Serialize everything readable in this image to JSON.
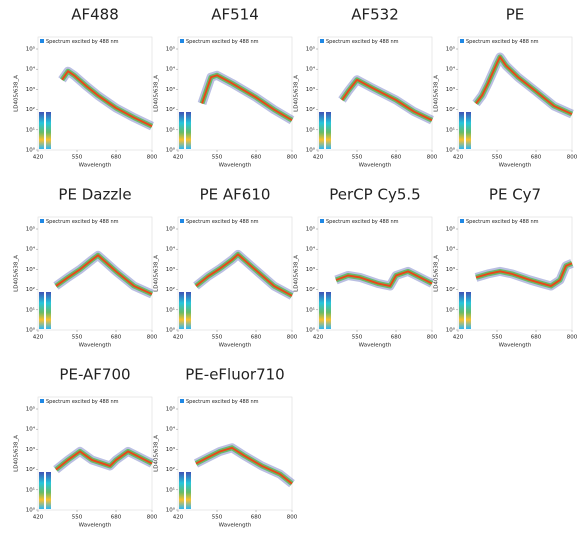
{
  "chart_data": [
    {
      "type": "line",
      "title": "AF488",
      "legend": "Spectrum excited by 488 nm",
      "xlabel": "Wavelength",
      "ylabel": "LD405/638_A",
      "log_y": true,
      "xlim": [
        420,
        800
      ],
      "ylim": [
        1,
        100000
      ],
      "xticks": [
        420,
        550,
        680,
        800
      ],
      "yticks": [
        {
          "value": 1,
          "label": "10⁰"
        },
        {
          "value": 10,
          "label": "10¹"
        },
        {
          "value": 100,
          "label": "10²"
        },
        {
          "value": 1000,
          "label": "10³"
        },
        {
          "value": 10000,
          "label": "10⁴"
        },
        {
          "value": 100000,
          "label": "10⁵"
        }
      ],
      "color": "#e64a19",
      "x": [
        500,
        520,
        540,
        580,
        620,
        680,
        740,
        800
      ],
      "values": [
        3000,
        8000,
        5000,
        1500,
        500,
        120,
        40,
        15
      ]
    },
    {
      "type": "line",
      "title": "AF514",
      "legend": "Spectrum excited by 488 nm",
      "xlabel": "Wavelength",
      "ylabel": "LD405/638_A",
      "log_y": true,
      "xlim": [
        420,
        800
      ],
      "ylim": [
        1,
        100000
      ],
      "xticks": [
        420,
        550,
        680,
        800
      ],
      "yticks": [
        {
          "value": 1,
          "label": "10⁰"
        },
        {
          "value": 10,
          "label": "10¹"
        },
        {
          "value": 100,
          "label": "10²"
        },
        {
          "value": 1000,
          "label": "10³"
        },
        {
          "value": 10000,
          "label": "10⁴"
        },
        {
          "value": 100000,
          "label": "10⁵"
        }
      ],
      "color": "#e64a19",
      "x": [
        500,
        530,
        550,
        600,
        680,
        740,
        800
      ],
      "values": [
        200,
        4000,
        5000,
        2000,
        400,
        100,
        30
      ]
    },
    {
      "type": "line",
      "title": "AF532",
      "legend": "Spectrum excited by 488 nm",
      "xlabel": "Wavelength",
      "ylabel": "LD405/638_A",
      "log_y": true,
      "xlim": [
        420,
        800
      ],
      "ylim": [
        1,
        100000
      ],
      "xticks": [
        420,
        550,
        680,
        800
      ],
      "yticks": [
        {
          "value": 1,
          "label": "10⁰"
        },
        {
          "value": 10,
          "label": "10¹"
        },
        {
          "value": 100,
          "label": "10²"
        },
        {
          "value": 1000,
          "label": "10³"
        },
        {
          "value": 10000,
          "label": "10⁴"
        },
        {
          "value": 100000,
          "label": "10⁵"
        }
      ],
      "color": "#e64a19",
      "x": [
        500,
        520,
        550,
        600,
        680,
        740,
        800
      ],
      "values": [
        300,
        800,
        3000,
        1200,
        300,
        80,
        30
      ]
    },
    {
      "type": "line",
      "title": "PE",
      "legend": "Spectrum excited by 488 nm",
      "xlabel": "Wavelength",
      "ylabel": "LD405/638_A",
      "log_y": true,
      "xlim": [
        420,
        800
      ],
      "ylim": [
        1,
        100000
      ],
      "xticks": [
        420,
        550,
        680,
        800
      ],
      "yticks": [
        {
          "value": 1,
          "label": "10⁰"
        },
        {
          "value": 10,
          "label": "10¹"
        },
        {
          "value": 100,
          "label": "10²"
        },
        {
          "value": 1000,
          "label": "10³"
        },
        {
          "value": 10000,
          "label": "10⁴"
        },
        {
          "value": 100000,
          "label": "10⁵"
        }
      ],
      "color": "#e64a19",
      "x": [
        480,
        500,
        520,
        550,
        560,
        580,
        620,
        680,
        740,
        800
      ],
      "values": [
        200,
        500,
        2000,
        20000,
        40000,
        15000,
        4000,
        800,
        150,
        60
      ]
    },
    {
      "type": "line",
      "title": "PE Dazzle",
      "legend": "Spectrum excited by 488 nm",
      "xlabel": "Wavelength",
      "ylabel": "LD405/638_A",
      "log_y": true,
      "xlim": [
        420,
        800
      ],
      "ylim": [
        1,
        100000
      ],
      "xticks": [
        420,
        550,
        680,
        800
      ],
      "yticks": [
        {
          "value": 1,
          "label": "10⁰"
        },
        {
          "value": 10,
          "label": "10¹"
        },
        {
          "value": 100,
          "label": "10²"
        },
        {
          "value": 1000,
          "label": "10³"
        },
        {
          "value": 10000,
          "label": "10⁴"
        },
        {
          "value": 100000,
          "label": "10⁵"
        }
      ],
      "color": "#e64a19",
      "x": [
        480,
        520,
        560,
        600,
        620,
        680,
        740,
        800
      ],
      "values": [
        150,
        400,
        1000,
        3000,
        5000,
        800,
        150,
        60
      ]
    },
    {
      "type": "line",
      "title": "PE AF610",
      "legend": "Spectrum excited by 488 nm",
      "xlabel": "Wavelength",
      "ylabel": "LD405/638_A",
      "log_y": true,
      "xlim": [
        420,
        800
      ],
      "ylim": [
        1,
        100000
      ],
      "xticks": [
        420,
        550,
        680,
        800
      ],
      "yticks": [
        {
          "value": 1,
          "label": "10⁰"
        },
        {
          "value": 10,
          "label": "10¹"
        },
        {
          "value": 100,
          "label": "10²"
        },
        {
          "value": 1000,
          "label": "10³"
        },
        {
          "value": 10000,
          "label": "10⁴"
        },
        {
          "value": 100000,
          "label": "10⁵"
        }
      ],
      "color": "#e64a19",
      "x": [
        480,
        520,
        560,
        600,
        620,
        680,
        740,
        800
      ],
      "values": [
        150,
        450,
        1100,
        3000,
        5500,
        900,
        150,
        50
      ]
    },
    {
      "type": "line",
      "title": "PerCP Cy5.5",
      "legend": "Spectrum excited by 488 nm",
      "xlabel": "Wavelength",
      "ylabel": "LD405/638_A",
      "log_y": true,
      "xlim": [
        420,
        800
      ],
      "ylim": [
        1,
        100000
      ],
      "xticks": [
        420,
        550,
        680,
        800
      ],
      "yticks": [
        {
          "value": 1,
          "label": "10⁰"
        },
        {
          "value": 10,
          "label": "10¹"
        },
        {
          "value": 100,
          "label": "10²"
        },
        {
          "value": 1000,
          "label": "10³"
        },
        {
          "value": 10000,
          "label": "10⁴"
        },
        {
          "value": 100000,
          "label": "10⁵"
        }
      ],
      "color": "#e64a19",
      "x": [
        480,
        520,
        560,
        620,
        660,
        680,
        720,
        760,
        800
      ],
      "values": [
        300,
        500,
        400,
        200,
        150,
        500,
        800,
        400,
        200
      ]
    },
    {
      "type": "line",
      "title": "PE Cy7",
      "legend": "Spectrum excited by 488 nm",
      "xlabel": "Wavelength",
      "ylabel": "LD405/638_A",
      "log_y": true,
      "xlim": [
        420,
        800
      ],
      "ylim": [
        1,
        100000
      ],
      "xticks": [
        420,
        550,
        680,
        800
      ],
      "yticks": [
        {
          "value": 1,
          "label": "10⁰"
        },
        {
          "value": 10,
          "label": "10¹"
        },
        {
          "value": 100,
          "label": "10²"
        },
        {
          "value": 1000,
          "label": "10³"
        },
        {
          "value": 10000,
          "label": "10⁴"
        },
        {
          "value": 100000,
          "label": "10⁵"
        }
      ],
      "color": "#e64a19",
      "x": [
        480,
        520,
        560,
        600,
        660,
        700,
        730,
        760,
        780,
        800
      ],
      "values": [
        400,
        600,
        800,
        600,
        300,
        200,
        150,
        300,
        1500,
        2000
      ]
    },
    {
      "type": "line",
      "title": "PE-AF700",
      "legend": "Spectrum excited by 488 nm",
      "xlabel": "Wavelength",
      "ylabel": "LD405/638_A",
      "log_y": true,
      "xlim": [
        420,
        800
      ],
      "ylim": [
        1,
        100000
      ],
      "xticks": [
        420,
        550,
        680,
        800
      ],
      "yticks": [
        {
          "value": 1,
          "label": "10⁰"
        },
        {
          "value": 10,
          "label": "10¹"
        },
        {
          "value": 100,
          "label": "10²"
        },
        {
          "value": 1000,
          "label": "10³"
        },
        {
          "value": 10000,
          "label": "10⁴"
        },
        {
          "value": 100000,
          "label": "10⁵"
        }
      ],
      "color": "#e64a19",
      "x": [
        480,
        520,
        560,
        600,
        660,
        680,
        720,
        760,
        800
      ],
      "values": [
        100,
        300,
        800,
        300,
        150,
        300,
        800,
        400,
        200
      ]
    },
    {
      "type": "line",
      "title": "PE-eFluor710",
      "legend": "Spectrum excited by 488 nm",
      "xlabel": "Wavelength",
      "ylabel": "LD405/638_A",
      "log_y": true,
      "xlim": [
        420,
        800
      ],
      "ylim": [
        1,
        100000
      ],
      "xticks": [
        420,
        550,
        680,
        800
      ],
      "yticks": [
        {
          "value": 1,
          "label": "10⁰"
        },
        {
          "value": 10,
          "label": "10¹"
        },
        {
          "value": 100,
          "label": "10²"
        },
        {
          "value": 1000,
          "label": "10³"
        },
        {
          "value": 10000,
          "label": "10⁴"
        },
        {
          "value": 100000,
          "label": "10⁵"
        }
      ],
      "color": "#e64a19",
      "x": [
        480,
        520,
        560,
        600,
        640,
        700,
        760,
        800
      ],
      "values": [
        200,
        400,
        800,
        1200,
        500,
        150,
        60,
        20
      ]
    }
  ]
}
